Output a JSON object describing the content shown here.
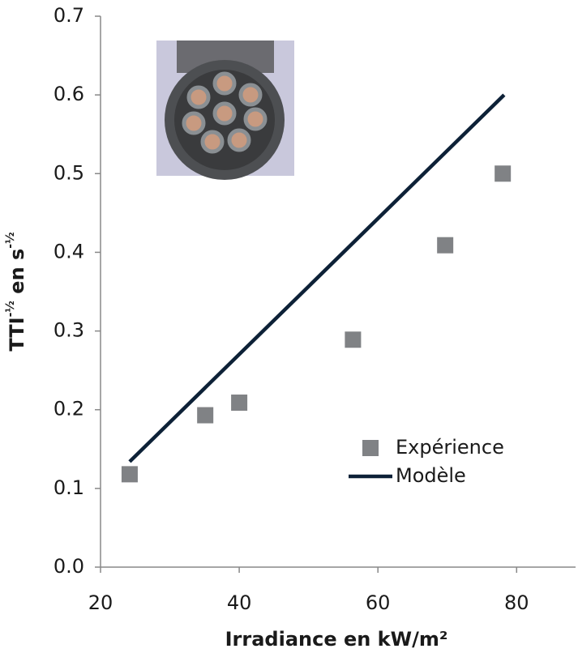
{
  "chart_data": {
    "type": "scatter",
    "x_label": "Irradiance en kW/m²",
    "y_label": [
      "TTI",
      "-½",
      " en s",
      "-½"
    ],
    "xlim": [
      20,
      88.5
    ],
    "ylim": [
      0,
      0.7
    ],
    "xticks": [
      20,
      40,
      60,
      80
    ],
    "yticks": [
      {
        "value": 0,
        "label": "0.0"
      },
      0.1,
      0.2,
      0.3,
      0.4,
      0.5,
      0.6,
      0.7
    ],
    "grid": false,
    "legend": "lower right",
    "series": [
      {
        "name": "Expérience",
        "type": "scatter",
        "color": "#808285",
        "x": [
          24.2,
          35.1,
          40,
          56.4,
          69.7,
          78
        ],
        "values": [
          0.118,
          0.193,
          0.209,
          0.289,
          0.409,
          0.5
        ]
      },
      {
        "name": "Modèle",
        "type": "line",
        "color": "#0d2137",
        "x": [
          24.2,
          78.2
        ],
        "values": [
          0.134,
          0.6
        ]
      }
    ]
  }
}
